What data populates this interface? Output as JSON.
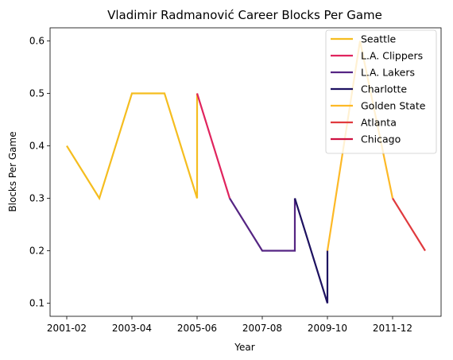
{
  "chart_data": {
    "type": "line",
    "title": "Vladimir Radmanović Career Blocks Per Game",
    "xlabel": "Year",
    "ylabel": "Blocks Per Game",
    "x_categories": [
      "2001-02",
      "2002-03",
      "2003-04",
      "2004-05",
      "2005-06",
      "2006-07",
      "2007-08",
      "2008-09",
      "2009-10",
      "2010-11",
      "2011-12",
      "2012-13"
    ],
    "x_tick_labels": [
      "2001-02",
      "2003-04",
      "2005-06",
      "2007-08",
      "2009-10",
      "2011-12"
    ],
    "yticks": [
      0.1,
      0.2,
      0.3,
      0.4,
      0.5,
      0.6
    ],
    "ylim": [
      0.075,
      0.625
    ],
    "grid": false,
    "legend_position": "top-right",
    "series": [
      {
        "name": "Seattle",
        "color": "#f5bd1f",
        "points": [
          [
            "2001-02",
            0.4
          ],
          [
            "2002-03",
            0.3
          ],
          [
            "2003-04",
            0.5
          ],
          [
            "2004-05",
            0.5
          ],
          [
            "2005-06",
            0.3
          ],
          [
            "2005-06",
            0.5
          ]
        ]
      },
      {
        "name": "L.A. Clippers",
        "color": "#e0245e",
        "points": [
          [
            "2005-06",
            0.5
          ],
          [
            "2006-07",
            0.3
          ]
        ]
      },
      {
        "name": "L.A. Lakers",
        "color": "#552583",
        "points": [
          [
            "2006-07",
            0.3
          ],
          [
            "2007-08",
            0.2
          ],
          [
            "2008-09",
            0.2
          ],
          [
            "2008-09",
            0.3
          ]
        ]
      },
      {
        "name": "Charlotte",
        "color": "#1d1160",
        "points": [
          [
            "2008-09",
            0.3
          ],
          [
            "2009-10",
            0.1
          ],
          [
            "2009-10",
            0.2
          ]
        ]
      },
      {
        "name": "Golden State",
        "color": "#fdb927",
        "points": [
          [
            "2009-10",
            0.2
          ],
          [
            "2010-11",
            0.6
          ],
          [
            "2011-12",
            0.3
          ]
        ]
      },
      {
        "name": "Atlanta",
        "color": "#e03a3e",
        "points": [
          [
            "2011-12",
            0.3
          ],
          [
            "2012-13",
            0.2
          ]
        ]
      },
      {
        "name": "Chicago",
        "color": "#ce1141",
        "points": []
      }
    ]
  }
}
